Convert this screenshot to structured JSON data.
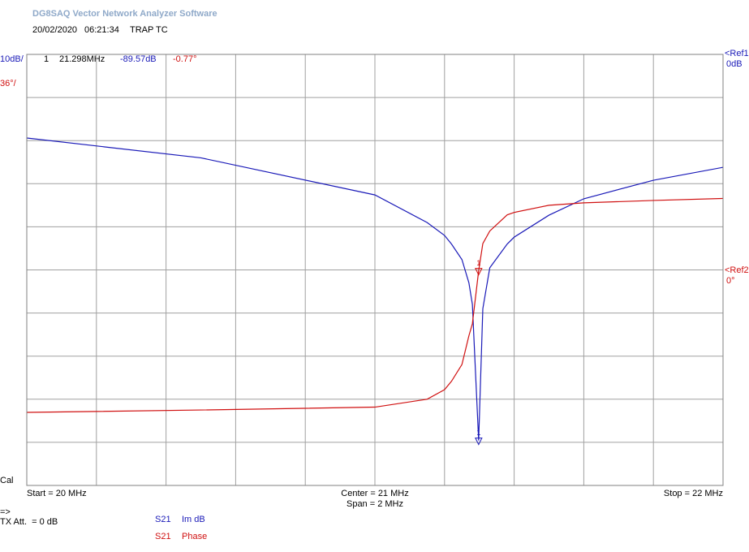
{
  "app_title": "DG8SAQ Vector Network Analyzer Software",
  "date": "20/02/2020",
  "time": "06:21:34",
  "label": "TRAP TC",
  "chart_data": {
    "type": "line",
    "scale1_label": "10dB/",
    "scale2_label": "36°/",
    "ref1_label": "<Ref1",
    "ref1_value_label": "0dB",
    "ref2_label": "<Ref2",
    "ref2_value_label": "0°",
    "cal_label": "Cal",
    "start_label": "Start = 20 MHz",
    "center_label": "Center = 21 MHz",
    "span_label": "Span = 2 MHz",
    "stop_label": "Stop = 22 MHz",
    "x": [
      20,
      20.5,
      21,
      21.15,
      21.2,
      21.22,
      21.25,
      21.27,
      21.28,
      21.298,
      21.31,
      21.33,
      21.38,
      21.4,
      21.5,
      21.6,
      21.8,
      22
    ],
    "xlim": [
      20,
      22
    ],
    "xticks": [
      20,
      20.2,
      20.4,
      20.6,
      20.8,
      21,
      21.2,
      21.4,
      21.6,
      21.8,
      22
    ],
    "ylim": [
      -100,
      0
    ],
    "yticks": [
      -100,
      -90,
      -80,
      -70,
      -60,
      -50,
      -40,
      -30,
      -20,
      -10,
      0
    ],
    "y2lim": [
      -180,
      180
    ],
    "grid": true,
    "series": [
      {
        "param": "S21",
        "name": "Im dB",
        "color": "#1a1ab8",
        "values": [
          -19.4,
          -24,
          -32.6,
          -39,
          -42,
          -44,
          -47.6,
          -53,
          -58,
          -89.57,
          -59,
          -49.5,
          -44,
          -42.4,
          -37.3,
          -33.5,
          -29.2,
          -26.2
        ]
      },
      {
        "param": "S21",
        "name": "Phase",
        "color": "#d01010",
        "axis": "y2",
        "values": [
          -119,
          -117,
          -114.6,
          -108,
          -100,
          -93,
          -79,
          -55,
          -45,
          -0.77,
          22,
          32.5,
          46,
          48,
          54,
          56,
          58,
          59.7
        ]
      }
    ],
    "marker": {
      "name": "1",
      "x": 21.298,
      "x_label": "21.298MHz",
      "values": [
        -89.57,
        -0.77
      ],
      "value_labels": [
        "-89.57dB",
        "-0.77°"
      ]
    }
  },
  "footer": {
    "arrow": "=>",
    "tx_att": "TX Att.  = 0 dB"
  }
}
